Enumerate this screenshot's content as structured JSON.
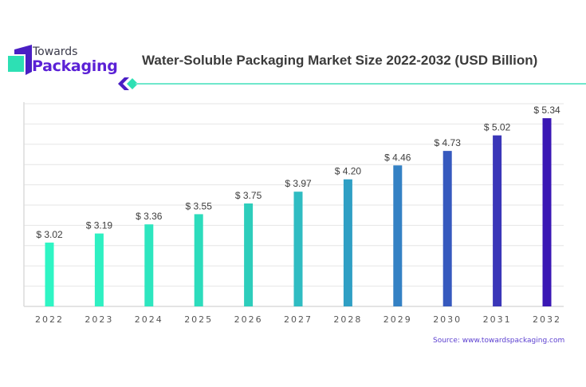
{
  "brand": {
    "line1": "Towards",
    "line2": "Packaging",
    "colors": {
      "purple": "#5b21d6",
      "teal": "#2de0b4",
      "dark_purple": "#3a1aa8"
    }
  },
  "source": "Source: www.towardspackaging.com",
  "chart_data": {
    "type": "bar",
    "title": "Water-Soluble Packaging Market Size 2022-2032 (USD Billion)",
    "xlabel": "",
    "ylabel": "",
    "categories": [
      "2022",
      "2023",
      "2024",
      "2025",
      "2026",
      "2027",
      "2028",
      "2029",
      "2030",
      "2031",
      "2032"
    ],
    "values": [
      3.02,
      3.19,
      3.36,
      3.55,
      3.75,
      3.97,
      4.2,
      4.46,
      4.73,
      5.02,
      5.34
    ],
    "labels": [
      "$ 3.02",
      "$ 3.19",
      "$ 3.36",
      "$ 3.55",
      "$ 3.75",
      "$ 3.97",
      "$ 4.20",
      "$ 4.46",
      "$ 4.73",
      "$ 5.02",
      "$ 5.34"
    ],
    "bar_colors": [
      "#2ef5c4",
      "#2ef0c2",
      "#2de6bf",
      "#2cdcbc",
      "#2dcdbb",
      "#2fbcc2",
      "#2f9fc4",
      "#3481c4",
      "#3659be",
      "#3a36b8",
      "#3a17b4"
    ],
    "ylim": [
      1.83,
      5.61
    ],
    "grid": true,
    "legend": "none"
  }
}
